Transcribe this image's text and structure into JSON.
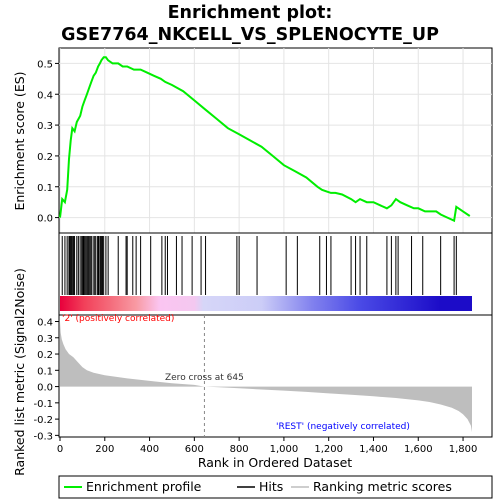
{
  "chart_data": {
    "type": "line",
    "title_line1": "Enrichment plot:",
    "title_line2": "GSE7764_NKCELL_VS_SPLENOCYTE_UP",
    "xlabel": "Rank in Ordered Dataset",
    "top_ylabel": "Enrichment score (ES)",
    "bottom_ylabel_line1": "Ranked list metric (Signal2Noise)",
    "n_genes": 1840,
    "x_ticks": [
      0,
      200,
      400,
      600,
      800,
      1000,
      1200,
      1400,
      1600,
      1800
    ],
    "x_tick_labels": [
      "0",
      "200",
      "400",
      "600",
      "800",
      "1,000",
      "1,200",
      "1,400",
      "1,600",
      "1,800"
    ],
    "es_ylim": [
      -0.05,
      0.55
    ],
    "es_ticks": [
      0.0,
      0.1,
      0.2,
      0.3,
      0.4,
      0.5
    ],
    "es_tick_labels": [
      "0.0",
      "0.1",
      "0.2",
      "0.3",
      "0.4",
      "0.5"
    ],
    "es_curve": {
      "x": [
        0,
        10,
        22,
        32,
        40,
        48,
        55,
        65,
        75,
        90,
        100,
        110,
        120,
        130,
        140,
        150,
        160,
        170,
        178,
        185,
        195,
        205,
        215,
        235,
        260,
        280,
        300,
        330,
        360,
        390,
        420,
        450,
        470,
        500,
        550,
        600,
        650,
        700,
        750,
        800,
        850,
        900,
        950,
        1000,
        1050,
        1100,
        1150,
        1170,
        1190,
        1210,
        1230,
        1260,
        1300,
        1320,
        1340,
        1370,
        1400,
        1430,
        1460,
        1480,
        1500,
        1520,
        1550,
        1580,
        1600,
        1630,
        1660,
        1680,
        1700,
        1730,
        1760,
        1770,
        1800,
        1830
      ],
      "y": [
        0.0,
        0.06,
        0.05,
        0.09,
        0.19,
        0.25,
        0.29,
        0.28,
        0.31,
        0.33,
        0.36,
        0.38,
        0.4,
        0.42,
        0.44,
        0.46,
        0.47,
        0.49,
        0.5,
        0.51,
        0.52,
        0.52,
        0.51,
        0.5,
        0.5,
        0.49,
        0.49,
        0.48,
        0.48,
        0.47,
        0.46,
        0.45,
        0.44,
        0.43,
        0.41,
        0.38,
        0.35,
        0.32,
        0.29,
        0.27,
        0.25,
        0.23,
        0.2,
        0.17,
        0.15,
        0.13,
        0.1,
        0.09,
        0.085,
        0.08,
        0.08,
        0.075,
        0.06,
        0.05,
        0.06,
        0.05,
        0.05,
        0.04,
        0.03,
        0.04,
        0.06,
        0.05,
        0.04,
        0.03,
        0.03,
        0.02,
        0.02,
        0.02,
        0.01,
        0.0,
        -0.01,
        0.035,
        0.02,
        0.005
      ]
    },
    "hits": [
      10,
      22,
      32,
      40,
      44,
      48,
      52,
      55,
      60,
      65,
      75,
      82,
      90,
      97,
      100,
      105,
      110,
      115,
      120,
      125,
      130,
      135,
      140,
      148,
      155,
      160,
      168,
      172,
      178,
      182,
      185,
      190,
      195,
      205,
      215,
      260,
      295,
      300,
      325,
      340,
      360,
      405,
      455,
      470,
      480,
      520,
      545,
      590,
      630,
      650,
      790,
      800,
      880,
      1010,
      1060,
      1160,
      1190,
      1210,
      1300,
      1320,
      1340,
      1370,
      1460,
      1480,
      1500,
      1510,
      1570,
      1620,
      1700,
      1760,
      1770
    ],
    "metric_ylim": [
      -0.31,
      0.44
    ],
    "metric_ticks": [
      -0.3,
      -0.2,
      -0.1,
      0.0,
      0.1,
      0.2,
      0.3,
      0.4
    ],
    "metric_tick_labels": [
      "-0.3",
      "-0.2",
      "-0.1",
      "0.0",
      "0.1",
      "0.2",
      "0.3",
      "0.4"
    ],
    "metric_curve": {
      "x": [
        0,
        3,
        8,
        15,
        25,
        40,
        60,
        80,
        100,
        120,
        150,
        200,
        300,
        400,
        500,
        600,
        645,
        700,
        800,
        900,
        1000,
        1100,
        1200,
        1300,
        1400,
        1500,
        1600,
        1650,
        1700,
        1750,
        1780,
        1800,
        1820,
        1835,
        1840
      ],
      "y": [
        0.4,
        0.33,
        0.29,
        0.26,
        0.23,
        0.2,
        0.18,
        0.15,
        0.12,
        0.1,
        0.085,
        0.07,
        0.05,
        0.035,
        0.02,
        0.01,
        0.0,
        -0.003,
        -0.01,
        -0.018,
        -0.025,
        -0.033,
        -0.042,
        -0.05,
        -0.06,
        -0.07,
        -0.085,
        -0.095,
        -0.11,
        -0.13,
        -0.15,
        -0.17,
        -0.2,
        -0.24,
        -0.28
      ]
    },
    "zero_cross": 645,
    "zero_cross_label": "Zero cross at 645",
    "pos_label": "'2' (positively correlated)",
    "neg_label": "'REST' (negatively correlated)",
    "legend": {
      "enrichment": "Enrichment profile",
      "hits": "Hits",
      "metric": "Ranking metric scores"
    },
    "colors": {
      "es_line": "#00ee00",
      "hit": "#000000",
      "metric_fill": "#bebebe",
      "pos_label": "#ff0000",
      "neg_label": "#0000ff",
      "zero_line": "#888888"
    },
    "bar_gradient": {
      "x": [
        0,
        110,
        220,
        340,
        445,
        600,
        640,
        900,
        1130,
        1200,
        1340,
        1700,
        1840
      ],
      "colors": [
        "#e8003c",
        "#f2415a",
        "#f46a7a",
        "#f89aa3",
        "#fbc5f1",
        "#f4c8f0",
        "#d6d6f8",
        "#cccdf7",
        "#8080ee",
        "#6f6feb",
        "#4a4ae6",
        "#1c0cc8",
        "#1c0cc8"
      ]
    }
  }
}
